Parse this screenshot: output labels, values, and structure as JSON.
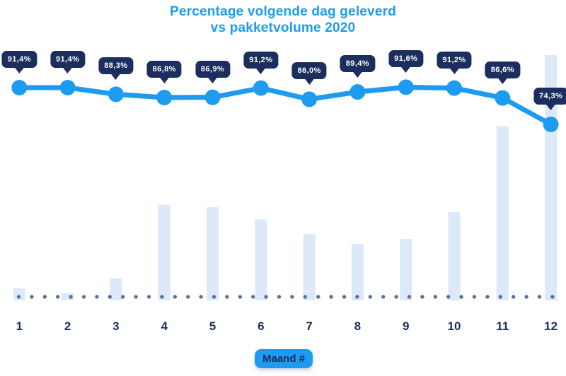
{
  "chart_data": {
    "type": "line",
    "title": "Percentage volgende dag geleverd vs pakketvolume 2020",
    "title_line1": "Percentage volgende dag geleverd",
    "title_line2": "vs pakketvolume 2020",
    "xlabel": "Maand #",
    "categories": [
      "1",
      "2",
      "3",
      "4",
      "5",
      "6",
      "7",
      "8",
      "9",
      "10",
      "11",
      "12"
    ],
    "series": [
      {
        "name": "Percentage volgende dag geleverd",
        "type": "line",
        "unit": "%",
        "values": [
          91.4,
          91.4,
          88.3,
          86.8,
          86.9,
          91.2,
          86.0,
          89.4,
          91.6,
          91.2,
          86.6,
          74.3
        ],
        "labels": [
          "91,4%",
          "91,4%",
          "88,3%",
          "86,8%",
          "86,9%",
          "91,2%",
          "86,0%",
          "89,4%",
          "91,6%",
          "91,2%",
          "86,6%",
          "74,3%"
        ]
      },
      {
        "name": "Pakketvolume 2020",
        "type": "bar",
        "unit": "relative index, estimated from bar heights (december = 100), no value axis shown",
        "values": [
          5,
          3,
          9,
          39,
          38,
          33,
          27,
          23,
          25,
          36,
          71,
          100
        ]
      }
    ],
    "legend_position": "none",
    "grid": false,
    "ylim_line_pct": [
      70,
      95
    ],
    "baseline": "dotted row at x-axis"
  },
  "colors": {
    "accent_blue": "#1d9bf0",
    "navy": "#1c2e5e",
    "bar_fill": "#dbe9f8",
    "baseline_dot": "#5e7195",
    "background": "#ffffff",
    "tooltip_text": "#ffffff"
  }
}
